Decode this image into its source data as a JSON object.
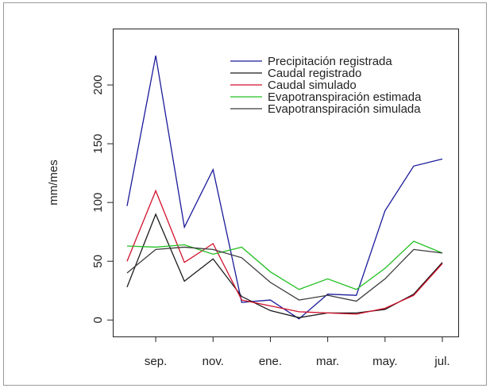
{
  "chart_data": {
    "type": "line",
    "y_label": "mm/mes",
    "categories": [
      null,
      "sep.",
      null,
      "nov.",
      null,
      "ene.",
      null,
      "mar.",
      null,
      "may.",
      null,
      "jul."
    ],
    "ylim": [
      -14,
      248
    ],
    "yticks": [
      0,
      50,
      100,
      150,
      200
    ],
    "legend": "top-right",
    "series": [
      {
        "name": "Precipitación registrada",
        "color": "#1a1a9a",
        "values": [
          97,
          225,
          79,
          128,
          15,
          17,
          1,
          22,
          21,
          93,
          131,
          137
        ]
      },
      {
        "name": "Caudal registrado",
        "color": "#1a1a1a",
        "values": [
          28,
          90,
          33,
          52,
          20,
          8,
          2,
          6,
          6,
          9,
          22,
          49
        ]
      },
      {
        "name": "Caudal simulado",
        "color": "#d0102a",
        "values": [
          50,
          110,
          49,
          65,
          17,
          12,
          7,
          6,
          5,
          10,
          21,
          48
        ]
      },
      {
        "name": "Evapotranspiración estimada",
        "color": "#22c022",
        "values": [
          63,
          62,
          64,
          56,
          62,
          41,
          26,
          35,
          26,
          44,
          67,
          57
        ]
      },
      {
        "name": "Evapotranspiración simulada",
        "color": "#3a3a3a",
        "values": [
          40,
          60,
          62,
          60,
          53,
          32,
          17,
          21,
          16,
          35,
          60,
          57
        ]
      }
    ]
  }
}
